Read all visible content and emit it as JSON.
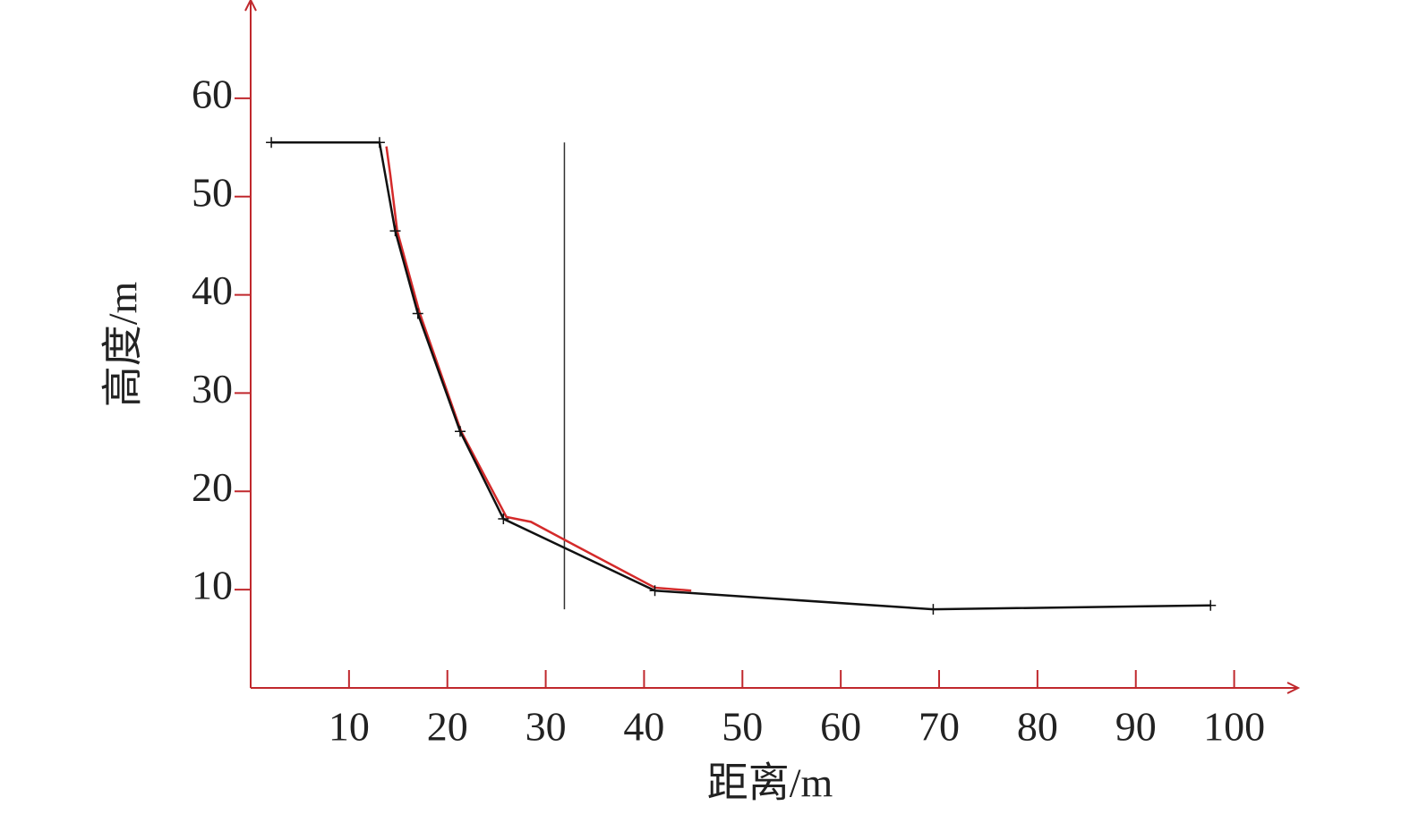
{
  "chart_data": {
    "type": "line",
    "x_label": "距离/m",
    "y_label": "高度/m",
    "xlim": [
      0,
      106.5
    ],
    "ylim": [
      0,
      70
    ],
    "xticks": [
      10,
      20,
      30,
      40,
      50,
      60,
      70,
      80,
      90,
      100
    ],
    "yticks": [
      10,
      20,
      30,
      40,
      50,
      60
    ],
    "axis_color": "#c0282d",
    "series": [
      {
        "color": "#d42a2a",
        "x": [
          13.8,
          14.2,
          14.9,
          17.2,
          21.4,
          26.0,
          28.5,
          32.8,
          41.1,
          44.8
        ],
        "values": [
          55.1,
          52.2,
          46.5,
          38.1,
          26.1,
          17.4,
          16.9,
          14.6,
          10.2,
          9.9
        ]
      },
      {
        "color": "#111111",
        "markers": "+",
        "x": [
          2.1,
          13.1,
          14.7,
          17.0,
          21.3,
          25.7,
          41.1,
          69.4,
          97.6
        ],
        "values": [
          55.5,
          55.5,
          46.5,
          38.1,
          26.1,
          17.2,
          9.9,
          8.0,
          8.4
        ]
      }
    ],
    "vertical_line": {
      "x": 31.9,
      "ymin": 8.0,
      "ymax": 55.5,
      "color": "#333333"
    }
  }
}
